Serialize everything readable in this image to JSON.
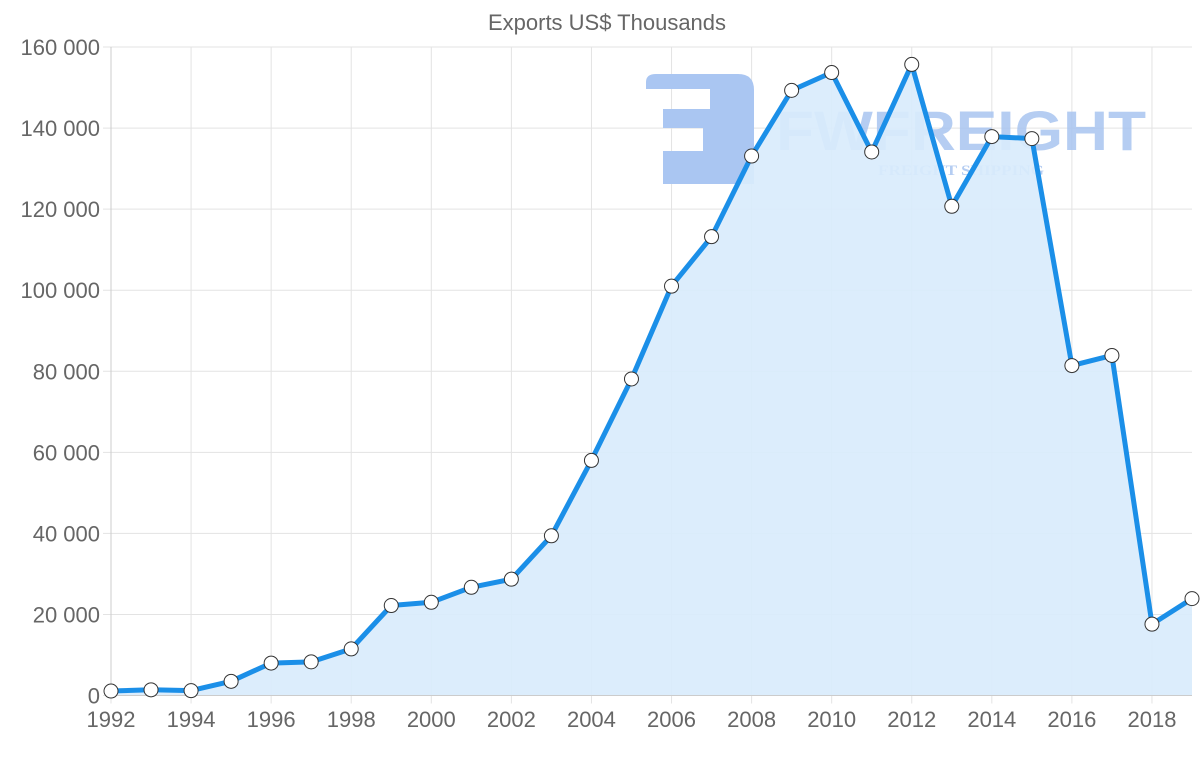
{
  "chart_data": {
    "type": "line",
    "title": "Exports US$ Thousands",
    "xlabel": "",
    "ylabel": "",
    "fill": true,
    "grid": true,
    "legend": null,
    "ylim": [
      0,
      160000
    ],
    "y_ticks": [
      0,
      20000,
      40000,
      60000,
      80000,
      100000,
      120000,
      140000,
      160000
    ],
    "y_tick_labels": [
      "0",
      "20 000",
      "40 000",
      "60 000",
      "80 000",
      "100 000",
      "120 000",
      "140 000",
      "160 000"
    ],
    "x_tick_labels": [
      "1992",
      "1994",
      "1996",
      "1998",
      "2000",
      "2002",
      "2004",
      "2006",
      "2008",
      "2010",
      "2012",
      "2014",
      "2016",
      "2018"
    ],
    "x": [
      1992,
      1993,
      1994,
      1995,
      1996,
      1997,
      1998,
      1999,
      2000,
      2001,
      2002,
      2003,
      2004,
      2005,
      2006,
      2007,
      2008,
      2009,
      2010,
      2011,
      2012,
      2013,
      2014,
      2015,
      2016,
      2017,
      2018,
      2019
    ],
    "series": [
      {
        "name": "Exports US$ Thousands",
        "color": "#1b8fe8",
        "fill_color": "#d9ecfc",
        "values": [
          1100,
          1400,
          1200,
          3500,
          8000,
          8300,
          11500,
          22200,
          23000,
          26700,
          28700,
          39400,
          58000,
          78100,
          101000,
          113200,
          133100,
          149300,
          153700,
          134100,
          155700,
          120700,
          137900,
          137400,
          81400,
          83900,
          17600,
          23900
        ]
      }
    ]
  },
  "watermark": {
    "brand": "FWFREIGHT",
    "tagline": "FREIGHT SHIPPING",
    "logo_icon": "fwfreight-logo-icon",
    "color": "#a8c4f0"
  },
  "colors": {
    "line": "#1b8fe8",
    "fill": "#d9ecfc",
    "grid": "#e3e3e3",
    "axis": "#cccccc",
    "text": "#666666"
  }
}
